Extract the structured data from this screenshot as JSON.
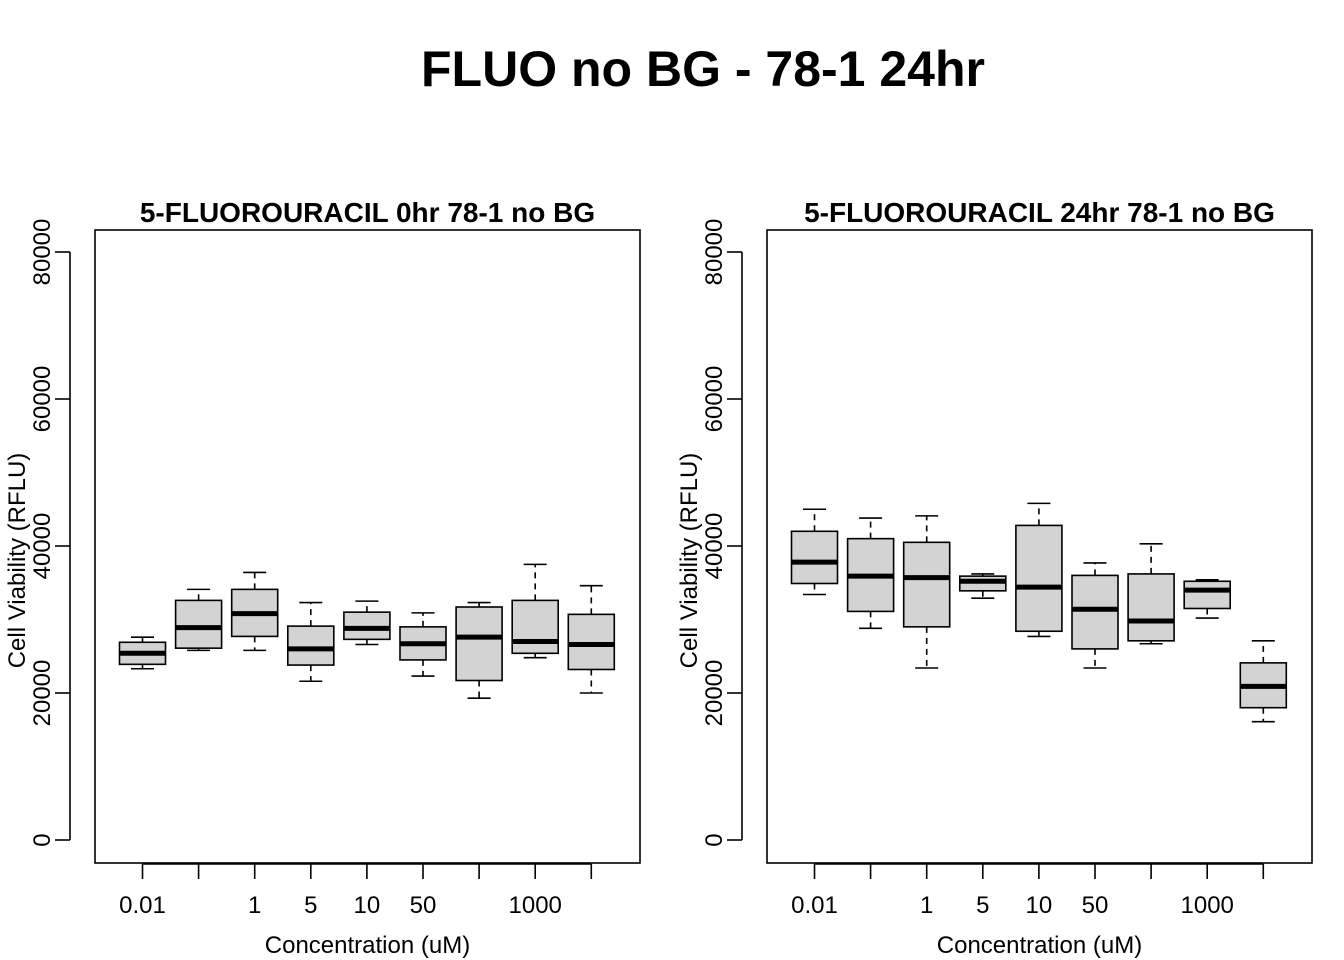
{
  "figure": {
    "title": "FLUO no BG - 78-1 24hr"
  },
  "chart_data": [
    {
      "type": "boxplot",
      "title": "5-FLUOROURACIL 0hr 78-1 no BG",
      "xlabel": "Concentration (uM)",
      "ylabel": "Cell Viability (RFLU)",
      "ylim": [
        0,
        80000
      ],
      "yticks": [
        0,
        20000,
        40000,
        60000,
        80000
      ],
      "ytick_labels": [
        "0",
        "20000",
        "40000",
        "60000",
        "80000"
      ],
      "categories": [
        "0.01",
        "",
        "1",
        "5",
        "10",
        "50",
        "",
        "1000",
        ""
      ],
      "box_color": "#d3d3d3",
      "boxes": [
        {
          "min": 23300,
          "q1": 23900,
          "median": 25400,
          "q3": 26900,
          "max": 27600
        },
        {
          "min": 25800,
          "q1": 26100,
          "median": 28900,
          "q3": 32600,
          "max": 34100
        },
        {
          "min": 25800,
          "q1": 27700,
          "median": 30800,
          "q3": 34100,
          "max": 36400
        },
        {
          "min": 21600,
          "q1": 23800,
          "median": 26000,
          "q3": 29100,
          "max": 32300
        },
        {
          "min": 26600,
          "q1": 27300,
          "median": 28800,
          "q3": 31000,
          "max": 32500
        },
        {
          "min": 22300,
          "q1": 24500,
          "median": 26700,
          "q3": 29000,
          "max": 30900
        },
        {
          "min": 19300,
          "q1": 21700,
          "median": 27600,
          "q3": 31700,
          "max": 32300
        },
        {
          "min": 24800,
          "q1": 25400,
          "median": 27000,
          "q3": 32600,
          "max": 37500
        },
        {
          "min": 20000,
          "q1": 23200,
          "median": 26600,
          "q3": 30700,
          "max": 34600
        }
      ]
    },
    {
      "type": "boxplot",
      "title": "5-FLUOROURACIL 24hr 78-1 no BG",
      "xlabel": "Concentration (uM)",
      "ylabel": "Cell Viability (RFLU)",
      "ylim": [
        0,
        80000
      ],
      "yticks": [
        0,
        20000,
        40000,
        60000,
        80000
      ],
      "ytick_labels": [
        "0",
        "20000",
        "40000",
        "60000",
        "80000"
      ],
      "categories": [
        "0.01",
        "",
        "1",
        "5",
        "10",
        "50",
        "",
        "1000",
        ""
      ],
      "box_color": "#d3d3d3",
      "boxes": [
        {
          "min": 33400,
          "q1": 34900,
          "median": 37800,
          "q3": 42000,
          "max": 45000
        },
        {
          "min": 28800,
          "q1": 31100,
          "median": 35900,
          "q3": 41000,
          "max": 43800
        },
        {
          "min": 23400,
          "q1": 29000,
          "median": 35700,
          "q3": 40500,
          "max": 44100
        },
        {
          "min": 32900,
          "q1": 33900,
          "median": 35200,
          "q3": 35900,
          "max": 36200
        },
        {
          "min": 27700,
          "q1": 28400,
          "median": 34400,
          "q3": 42800,
          "max": 45800
        },
        {
          "min": 23400,
          "q1": 26000,
          "median": 31400,
          "q3": 36000,
          "max": 37700
        },
        {
          "min": 26700,
          "q1": 27100,
          "median": 29800,
          "q3": 36200,
          "max": 40300
        },
        {
          "min": 30200,
          "q1": 31500,
          "median": 34000,
          "q3": 35200,
          "max": 35400
        },
        {
          "min": 16100,
          "q1": 18000,
          "median": 20900,
          "q3": 24100,
          "max": 27100
        }
      ]
    }
  ]
}
